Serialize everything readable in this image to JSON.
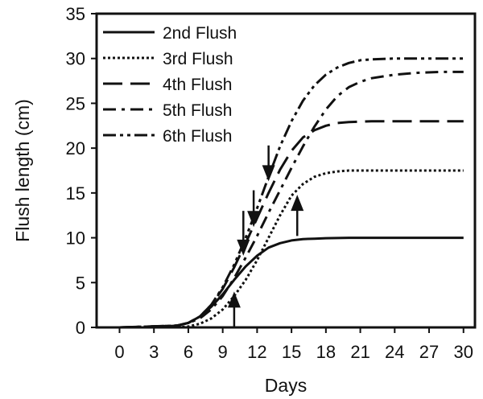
{
  "chart_data": {
    "type": "line",
    "title": "",
    "xlabel": "Days",
    "ylabel": "Flush length (cm)",
    "xlim": [
      -2,
      31
    ],
    "ylim": [
      0,
      35
    ],
    "xticks": [
      0,
      3,
      6,
      9,
      12,
      15,
      18,
      21,
      24,
      27,
      30
    ],
    "yticks": [
      0,
      5,
      10,
      15,
      20,
      25,
      30,
      35
    ],
    "grid": false,
    "legend_position": "top-left",
    "series": [
      {
        "name": "2nd Flush",
        "dash": "solid",
        "x": [
          0,
          3,
          5,
          6,
          7,
          8,
          9,
          10,
          11,
          12,
          13,
          14,
          15,
          16,
          17,
          18,
          20,
          22,
          25,
          28,
          30
        ],
        "y": [
          0,
          0,
          0.2,
          0.5,
          1.2,
          2.3,
          3.7,
          5.3,
          6.8,
          8.0,
          8.9,
          9.4,
          9.7,
          9.85,
          9.9,
          9.95,
          10,
          10,
          10,
          10,
          10
        ]
      },
      {
        "name": "3rd Flush",
        "dash": "dotted",
        "x": [
          0,
          5,
          6,
          7,
          8,
          9,
          10,
          11,
          12,
          13,
          14,
          15,
          16,
          17,
          18,
          19,
          20,
          22,
          25,
          30
        ],
        "y": [
          0,
          0,
          0.1,
          0.4,
          1.0,
          2.0,
          3.5,
          5.3,
          7.5,
          10.0,
          12.5,
          14.7,
          16.0,
          16.8,
          17.2,
          17.4,
          17.5,
          17.5,
          17.5,
          17.5
        ]
      },
      {
        "name": "4th Flush",
        "dash": "dash",
        "x": [
          0,
          5,
          6,
          7,
          8,
          9,
          10,
          11,
          12,
          13,
          14,
          15,
          16,
          17,
          18,
          19,
          20,
          22,
          25,
          30
        ],
        "y": [
          0,
          0.2,
          0.5,
          1.2,
          2.5,
          4.3,
          6.7,
          9.4,
          12.2,
          15.0,
          17.6,
          19.7,
          21.2,
          22.0,
          22.5,
          22.8,
          22.9,
          23,
          23,
          23
        ]
      },
      {
        "name": "5th Flush",
        "dash": "dashdot",
        "x": [
          0,
          5,
          6,
          7,
          8,
          9,
          10,
          11,
          12,
          13,
          14,
          15,
          16,
          17,
          18,
          19,
          20,
          21,
          22,
          24,
          26,
          28,
          30
        ],
        "y": [
          0,
          0.2,
          0.5,
          1.0,
          2.0,
          3.5,
          5.5,
          7.8,
          10.2,
          12.8,
          15.3,
          17.8,
          20.2,
          22.4,
          24.3,
          25.8,
          26.8,
          27.4,
          27.8,
          28.2,
          28.4,
          28.5,
          28.5
        ]
      },
      {
        "name": "6th Flush",
        "dash": "dashdotdot",
        "x": [
          0,
          5,
          6,
          7,
          8,
          9,
          10,
          11,
          12,
          13,
          14,
          15,
          16,
          17,
          18,
          19,
          20,
          21,
          22,
          24,
          26,
          28,
          30
        ],
        "y": [
          0,
          0.2,
          0.5,
          1.2,
          2.5,
          4.5,
          7.0,
          10.0,
          13.3,
          16.8,
          20.2,
          23.0,
          25.3,
          27.0,
          28.2,
          29.0,
          29.5,
          29.8,
          29.9,
          30,
          30,
          30,
          30
        ]
      }
    ],
    "arrows": [
      {
        "direction": "down",
        "x": 10.8,
        "y_from": 13.0,
        "y_to": 8.0
      },
      {
        "direction": "down",
        "x": 11.7,
        "y_from": 15.3,
        "y_to": 11.2
      },
      {
        "direction": "down",
        "x": 13.0,
        "y_from": 20.3,
        "y_to": 16.3
      },
      {
        "direction": "up",
        "x": 10.0,
        "y_from": 0.0,
        "y_to": 4.0
      },
      {
        "direction": "up",
        "x": 15.5,
        "y_from": 10.2,
        "y_to": 14.8
      }
    ],
    "colors": {
      "line": "#111111",
      "background": "#ffffff"
    }
  }
}
